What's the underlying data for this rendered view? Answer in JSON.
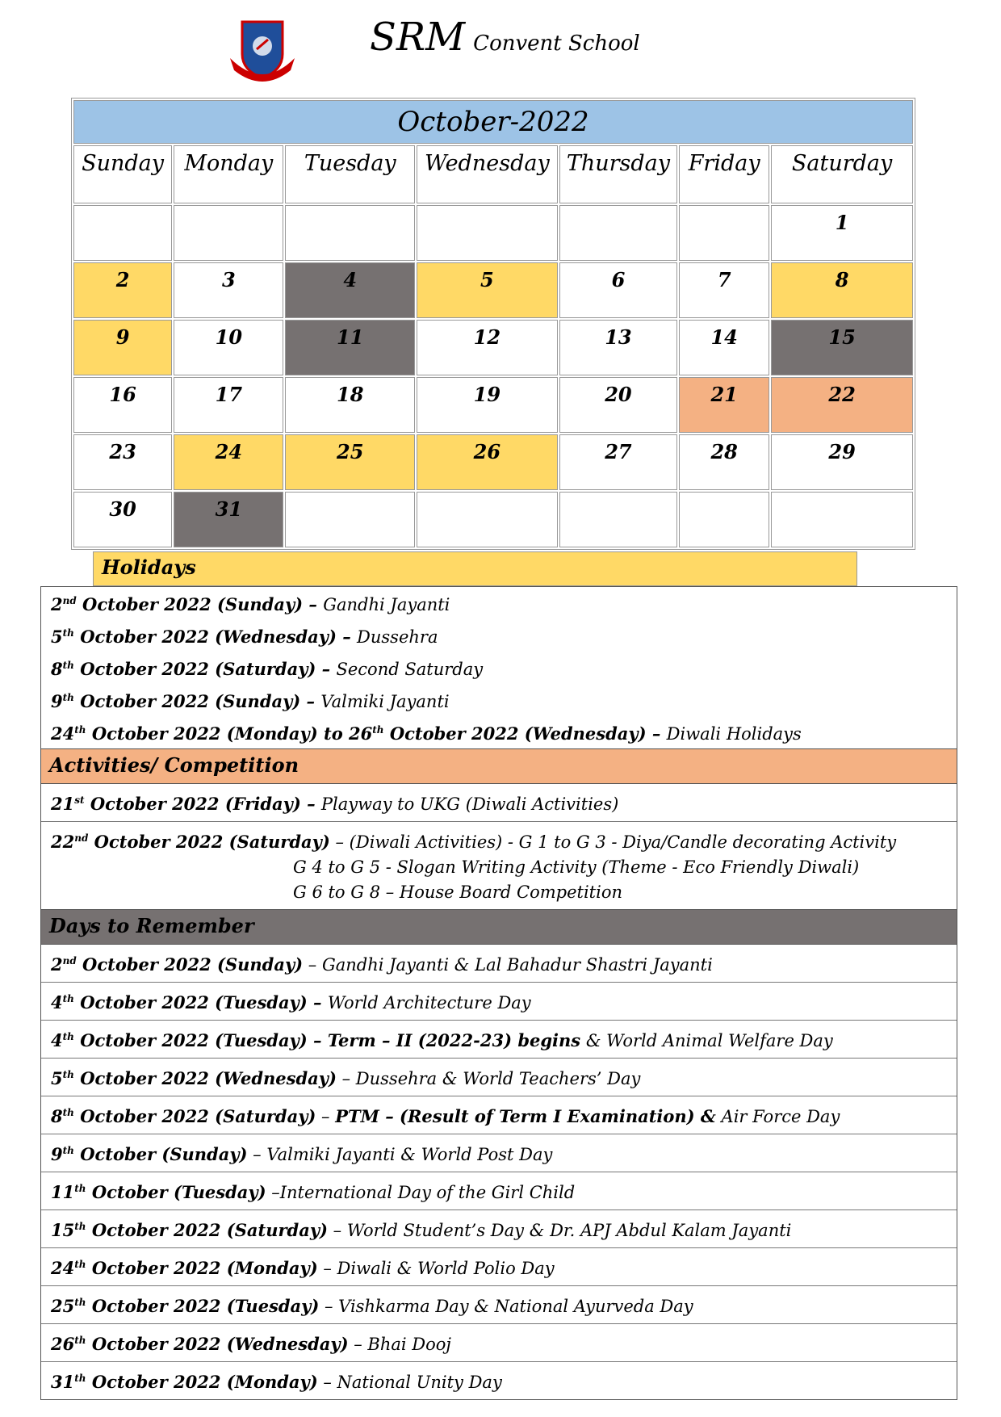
{
  "header": {
    "school": "SRM",
    "school_rest": "Convent School"
  },
  "calendar": {
    "title": "October-2022",
    "title_color": "#9dc3e6",
    "days": [
      "Sunday",
      "Monday",
      "Tuesday",
      "Wednesday",
      "Thursday",
      "Friday",
      "Saturday"
    ],
    "weeks": [
      [
        null,
        null,
        null,
        null,
        null,
        null,
        1
      ],
      [
        {
          "day": 2,
          "color": "#ffd966"
        },
        3,
        {
          "day": 4,
          "color": "#767171"
        },
        {
          "day": 5,
          "color": "#ffd966"
        },
        6,
        7,
        {
          "day": 8,
          "color": "#ffd966"
        }
      ],
      [
        {
          "day": 9,
          "color": "#ffd966"
        },
        10,
        {
          "day": 11,
          "color": "#767171"
        },
        12,
        13,
        14,
        {
          "day": 15,
          "color": "#767171"
        }
      ],
      [
        16,
        17,
        18,
        19,
        20,
        {
          "day": 21,
          "color": "#f4b183"
        },
        {
          "day": 22,
          "color": "#f4b183"
        }
      ],
      [
        23,
        {
          "day": 24,
          "color": "#ffd966"
        },
        {
          "day": 25,
          "color": "#ffd966"
        },
        {
          "day": 26,
          "color": "#ffd966"
        },
        27,
        28,
        29
      ],
      [
        30,
        {
          "day": 31,
          "color": "#767171"
        },
        null,
        null,
        null,
        null,
        null
      ]
    ]
  },
  "sections": [
    {
      "title": "Holidays",
      "color": "#ffd966",
      "divided": false,
      "items": [
        {
          "runs": [
            {
              "b": "2"
            },
            {
              "sup": "nd"
            },
            {
              "b": " October 2022 (Sunday) – "
            },
            {
              "i": "Gandhi Jayanti"
            }
          ]
        },
        {
          "runs": [
            {
              "b": "5"
            },
            {
              "sup": "th"
            },
            {
              "b": " October 2022 (Wednesday) – "
            },
            {
              "i": "Dussehra"
            }
          ]
        },
        {
          "runs": [
            {
              "b": "8"
            },
            {
              "sup": "th"
            },
            {
              "b": " October 2022 (Saturday) – "
            },
            {
              "i": "Second Saturday"
            }
          ]
        },
        {
          "runs": [
            {
              "b": "9"
            },
            {
              "sup": "th"
            },
            {
              "b": " October 2022 (Sunday) – "
            },
            {
              "i": "Valmiki Jayanti"
            }
          ]
        },
        {
          "runs": [
            {
              "b": "24"
            },
            {
              "sup": "th"
            },
            {
              "b": " October 2022 (Monday) to 26"
            },
            {
              "sup": "th"
            },
            {
              "b": " October 2022 (Wednesday) – "
            },
            {
              "i": "Diwali Holidays"
            }
          ]
        }
      ]
    },
    {
      "title": "Activities/ Competition",
      "color": "#f4b183",
      "divided": true,
      "items": [
        {
          "runs": [
            {
              "b": "21"
            },
            {
              "sup": "st"
            },
            {
              "b": " October 2022 (Friday) – "
            },
            {
              "i": "Playway to UKG (Diwali Activities)"
            }
          ]
        },
        {
          "runs": [
            {
              "b": "22"
            },
            {
              "sup": "nd"
            },
            {
              "b": " October 2022 (Saturday)"
            },
            {
              "i": " – (Diwali Activities) - G 1 to G 3 - Diya/Candle decorating Activity"
            }
          ],
          "more": [
            "G 4 to G 5 - Slogan Writing Activity (Theme - Eco Friendly Diwali)",
            "G 6 to G 8 – House Board Competition"
          ]
        }
      ]
    },
    {
      "title": "Days to Remember",
      "color": "#767171",
      "divided": true,
      "items": [
        {
          "runs": [
            {
              "b": "2"
            },
            {
              "sup": "nd"
            },
            {
              "b": " October 2022 (Sunday)"
            },
            {
              "i": " – Gandhi Jayanti & Lal Bahadur Shastri Jayanti"
            }
          ]
        },
        {
          "runs": [
            {
              "b": "4"
            },
            {
              "sup": "th"
            },
            {
              "b": " October 2022 (Tuesday) – "
            },
            {
              "i": "World Architecture Day"
            }
          ]
        },
        {
          "runs": [
            {
              "b": "4"
            },
            {
              "sup": "th"
            },
            {
              "b": " October 2022 (Tuesday) – Term – II (2022-23) begins"
            },
            {
              "i": " & World Animal Welfare Day"
            }
          ]
        },
        {
          "runs": [
            {
              "b": "5"
            },
            {
              "sup": "th"
            },
            {
              "b": " October 2022 (Wednesday)"
            },
            {
              "i": " – Dussehra & World Teachers’ Day"
            }
          ]
        },
        {
          "runs": [
            {
              "b": "8"
            },
            {
              "sup": "th"
            },
            {
              "b": " October 2022 (Saturday)"
            },
            {
              "i": " – "
            },
            {
              "b": "PTM – (Result of Term I Examination) &"
            },
            {
              "i": " Air Force Day"
            }
          ]
        },
        {
          "runs": [
            {
              "b": "9"
            },
            {
              "sup": "th"
            },
            {
              "b": " October (Sunday)"
            },
            {
              "i": " – Valmiki Jayanti & World Post Day"
            }
          ]
        },
        {
          "runs": [
            {
              "b": "11"
            },
            {
              "sup": "th"
            },
            {
              "b": " October (Tuesday)"
            },
            {
              "i": " –International Day of the Girl Child"
            }
          ]
        },
        {
          "runs": [
            {
              "b": "15"
            },
            {
              "sup": "th"
            },
            {
              "b": " October 2022 (Saturday)"
            },
            {
              "i": " – World Student’s Day & Dr. APJ Abdul Kalam Jayanti"
            }
          ]
        },
        {
          "runs": [
            {
              "b": "24"
            },
            {
              "sup": "th"
            },
            {
              "b": " October 2022 (Monday)"
            },
            {
              "i": " – Diwali & World Polio Day"
            }
          ]
        },
        {
          "runs": [
            {
              "b": "25"
            },
            {
              "sup": "th"
            },
            {
              "b": " October 2022 (Tuesday)"
            },
            {
              "i": " – Vishkarma Day & National Ayurveda Day"
            }
          ]
        },
        {
          "runs": [
            {
              "b": "26"
            },
            {
              "sup": "th"
            },
            {
              "b": " October 2022 (Wednesday)"
            },
            {
              "i": " – Bhai Dooj"
            }
          ]
        },
        {
          "runs": [
            {
              "b": "31"
            },
            {
              "sup": "th"
            },
            {
              "b": " October 2022 (Monday)"
            },
            {
              "i": " – National Unity Day"
            }
          ]
        }
      ]
    }
  ]
}
